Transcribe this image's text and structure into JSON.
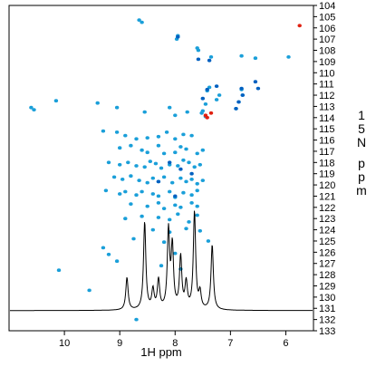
{
  "chart_data": {
    "type": "scatter",
    "title": "",
    "xlabel": "1H ppm",
    "ylabel": "15N ppm",
    "xlim": [
      11.0,
      5.5
    ],
    "ylim": [
      133,
      104
    ],
    "x_ticks": [
      10,
      9,
      8,
      7,
      6
    ],
    "y_ticks": [
      104,
      105,
      106,
      107,
      108,
      109,
      110,
      111,
      112,
      113,
      114,
      115,
      116,
      117,
      118,
      119,
      120,
      121,
      122,
      123,
      124,
      125,
      126,
      127,
      128,
      129,
      130,
      131,
      132,
      133
    ],
    "grid": false,
    "legend": "none",
    "colors": {
      "peak": "#1a9fd9",
      "peak_dark": "#0060c0",
      "negative_peak": "#e02010",
      "spectrum": "#000000"
    },
    "series": [
      {
        "kind": "hsqc_peaks",
        "color": "#1a9fd9",
        "x": [
          8.65,
          8.6,
          7.95,
          7.97,
          7.6,
          7.58,
          7.35,
          6.8,
          6.55,
          5.95,
          7.38,
          7.42,
          7.2,
          7.25,
          6.8,
          6.78,
          6.85,
          6.9,
          7.45,
          7.5,
          7.52,
          10.6,
          10.55,
          10.15,
          9.4,
          9.05,
          8.55,
          8.1,
          8.0,
          7.78,
          7.45,
          9.3,
          9.05,
          8.9,
          8.7,
          8.5,
          8.3,
          8.15,
          8.0,
          7.85,
          7.7,
          9.0,
          8.8,
          8.6,
          8.5,
          8.3,
          8.2,
          8.0,
          7.9,
          7.8,
          7.6,
          7.5,
          9.2,
          9.0,
          8.85,
          8.7,
          8.55,
          8.45,
          8.35,
          8.25,
          8.1,
          7.95,
          7.85,
          7.75,
          7.65,
          7.55,
          9.1,
          8.95,
          8.8,
          8.65,
          8.5,
          8.4,
          8.3,
          8.2,
          8.05,
          7.9,
          7.8,
          7.7,
          7.6,
          7.5,
          9.25,
          9.0,
          8.9,
          8.7,
          8.6,
          8.4,
          8.3,
          8.1,
          8.0,
          7.85,
          7.7,
          7.6,
          8.8,
          8.5,
          8.3,
          8.2,
          8.0,
          7.9,
          7.7,
          7.6,
          8.9,
          8.6,
          8.3,
          8.1,
          7.95,
          7.75,
          7.6,
          8.4,
          8.1,
          7.8,
          7.55,
          8.75,
          8.2,
          7.4,
          9.3,
          9.2,
          8.0,
          9.05,
          8.25,
          7.9,
          9.55,
          10.1,
          8.7
        ],
        "y": [
          105.3,
          105.5,
          106.7,
          107.0,
          107.8,
          108.0,
          108.6,
          108.5,
          108.7,
          108.6,
          111.3,
          111.6,
          112.0,
          112.4,
          111.5,
          112.0,
          112.6,
          113.2,
          112.8,
          113.4,
          113.6,
          113.1,
          113.3,
          112.5,
          112.7,
          113.1,
          113.5,
          113.1,
          113.8,
          113.5,
          113.9,
          115.2,
          115.3,
          115.6,
          115.9,
          115.8,
          115.7,
          115.3,
          115.9,
          115.5,
          115.6,
          116.7,
          116.5,
          116.9,
          117.1,
          116.5,
          117.2,
          117.1,
          116.6,
          116.8,
          117.2,
          116.9,
          118.0,
          118.2,
          118.0,
          118.3,
          118.4,
          117.9,
          118.1,
          118.5,
          118.2,
          118.3,
          117.8,
          118.0,
          118.4,
          118.2,
          119.3,
          119.5,
          119.2,
          119.6,
          119.8,
          119.4,
          119.7,
          119.3,
          119.8,
          119.4,
          119.7,
          119.5,
          119.9,
          119.6,
          120.5,
          120.8,
          120.6,
          120.9,
          120.6,
          120.8,
          121.0,
          120.6,
          121.1,
          120.7,
          120.9,
          120.5,
          121.7,
          121.9,
          121.6,
          122.1,
          121.8,
          122.0,
          121.6,
          121.9,
          123.0,
          122.8,
          122.9,
          123.1,
          122.6,
          123.3,
          122.7,
          124.0,
          124.2,
          123.9,
          124.1,
          124.8,
          125.1,
          125.0,
          125.6,
          126.2,
          126.1,
          126.8,
          127.2,
          127.5,
          129.4,
          127.6,
          132.0
        ]
      },
      {
        "kind": "hsqc_peaks_dark",
        "color": "#0060c0",
        "x": [
          7.95,
          7.58,
          7.38,
          6.8,
          6.55,
          6.5,
          7.25,
          7.42,
          6.78,
          6.85,
          6.9,
          7.5,
          8.1,
          7.9,
          7.7,
          8.0,
          8.3
        ],
        "y": [
          106.8,
          108.8,
          108.9,
          111.4,
          110.8,
          111.4,
          111.2,
          111.5,
          112.0,
          112.6,
          113.2,
          112.3,
          118.0,
          118.6,
          119.0,
          121.0,
          119.7
        ]
      },
      {
        "kind": "negative_peaks",
        "color": "#e02010",
        "x": [
          5.75,
          7.45,
          7.42,
          7.35
        ],
        "y": [
          105.8,
          113.8,
          114.0,
          113.6
        ]
      }
    ],
    "spectrum_1d": {
      "baseline_ppm": 131.2,
      "peaks": [
        {
          "x": 8.87,
          "height": 1.0
        },
        {
          "x": 8.55,
          "height": 2.7
        },
        {
          "x": 8.4,
          "height": 0.6
        },
        {
          "x": 8.3,
          "height": 0.9
        },
        {
          "x": 8.12,
          "height": 2.4
        },
        {
          "x": 8.05,
          "height": 1.9
        },
        {
          "x": 7.9,
          "height": 1.6
        },
        {
          "x": 7.8,
          "height": 0.8
        },
        {
          "x": 7.65,
          "height": 3.0
        },
        {
          "x": 7.55,
          "height": 0.5
        },
        {
          "x": 7.33,
          "height": 2.0
        }
      ]
    }
  }
}
